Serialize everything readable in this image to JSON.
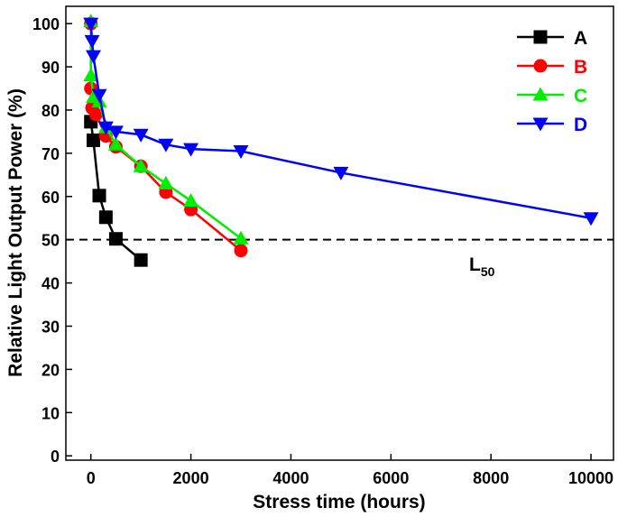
{
  "chart_data": {
    "type": "line",
    "xlabel": "Stress time (hours)",
    "ylabel": "Relative Light Output Power (%)",
    "xlim": [
      -500,
      10450
    ],
    "ylim": [
      -1,
      104
    ],
    "xticks": [
      0,
      2000,
      4000,
      6000,
      8000,
      10000
    ],
    "yticks": [
      0,
      10,
      20,
      30,
      40,
      50,
      60,
      70,
      80,
      90,
      100
    ],
    "legend": "upper right",
    "reference_line": 50,
    "reference_label": "L",
    "reference_label_sub": "50",
    "series": [
      {
        "name": "A",
        "color": "#000000",
        "marker": "square",
        "x": [
          0,
          50,
          168,
          300,
          500,
          1000
        ],
        "values": [
          77.3,
          73,
          60.2,
          55.2,
          50.2,
          45.3
        ]
      },
      {
        "name": "B",
        "color": "#ff0000",
        "marker": "circle",
        "x": [
          0,
          0,
          24,
          100,
          300,
          500,
          1000,
          1500,
          2000,
          3000
        ],
        "values": [
          100,
          85,
          80.5,
          79,
          74,
          71.5,
          67,
          61,
          57,
          47.5
        ]
      },
      {
        "name": "C",
        "color": "#00ee00",
        "marker": "triangle-up",
        "x": [
          0,
          0,
          50,
          168,
          300,
          500,
          1000,
          1500,
          2000,
          3000
        ],
        "values": [
          100.5,
          88,
          83,
          82,
          76,
          72,
          67,
          63,
          59,
          50.3
        ]
      },
      {
        "name": "D",
        "color": "#0000ff",
        "marker": "triangle-down",
        "x": [
          0,
          24,
          50,
          168,
          300,
          500,
          1000,
          1500,
          2000,
          3000,
          5000,
          10000
        ],
        "values": [
          100,
          96,
          92.5,
          83.5,
          76,
          75,
          74.3,
          72,
          71,
          70.5,
          65.5,
          55
        ]
      }
    ]
  }
}
